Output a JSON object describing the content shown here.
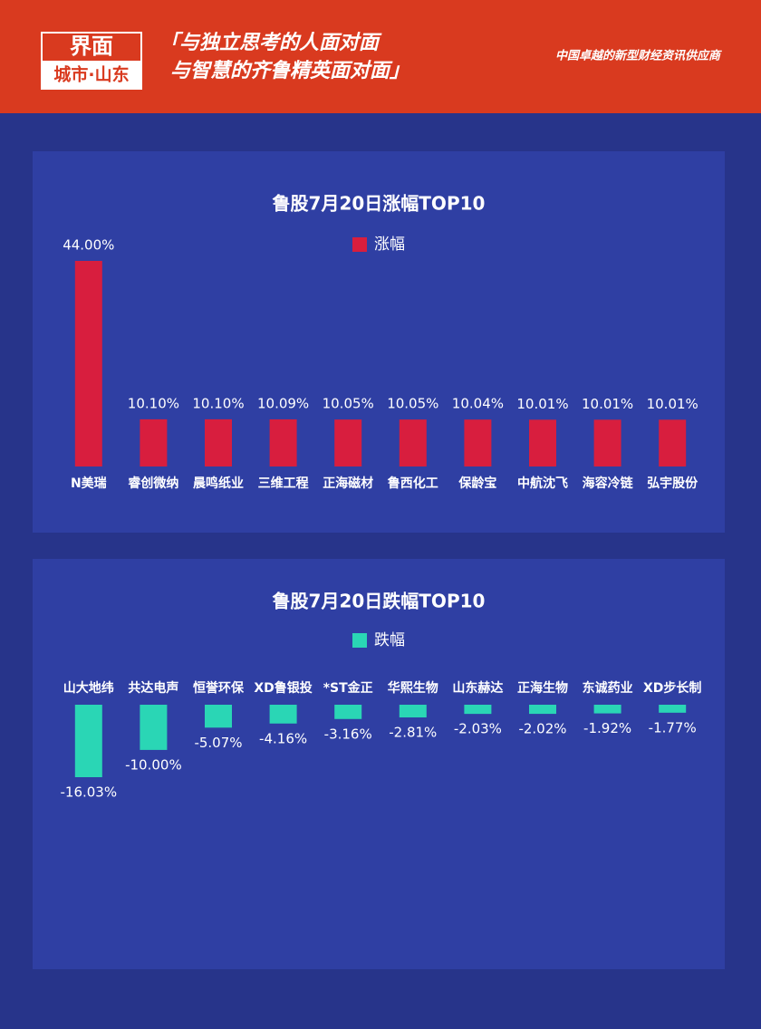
{
  "header": {
    "logo": "界面",
    "logo_sub": "城市·山东",
    "slogan_line1": "「与独立思考的人面对面",
    "slogan_line2": "与智慧的齐鲁精英面对面」",
    "tagline": "中国卓越的新型财经资讯供应商"
  },
  "chart_data": [
    {
      "type": "bar",
      "title": "鲁股7月20日涨幅TOP10",
      "categories": [
        "N美瑞",
        "睿创微纳",
        "晨鸣纸业",
        "三维工程",
        "正海磁材",
        "鲁西化工",
        "保龄宝",
        "中航沈飞",
        "海容冷链",
        "弘宇股份"
      ],
      "series": [
        {
          "name": "涨幅",
          "color": "#d81e3e",
          "values": [
            44,
            10.1,
            10.1,
            10.09,
            10.05,
            10.05,
            10.04,
            10.01,
            10.01,
            10.01
          ],
          "value_labels": [
            "44.00%",
            "10.10%",
            "10.10%",
            "10.09%",
            "10.05%",
            "10.05%",
            "10.04%",
            "10.01%",
            "10.01%",
            "10.01%"
          ]
        }
      ]
    },
    {
      "type": "bar",
      "title": "鲁股7月20日跌幅TOP10",
      "categories": [
        "山大地纬",
        "共达电声",
        "恒誉环保",
        "XD鲁银投",
        "*ST金正",
        "华熙生物",
        "山东赫达",
        "正海生物",
        "东诚药业",
        "XD步长制"
      ],
      "series": [
        {
          "name": "跌幅",
          "color": "#2ad6b5",
          "values": [
            -16.03,
            -10,
            -5.07,
            -4.16,
            -3.16,
            -2.81,
            -2.03,
            -2.02,
            -1.92,
            -1.77
          ],
          "value_labels": [
            "-16.03%",
            "-10.00%",
            "-5.07%",
            "-4.16%",
            "-3.16%",
            "-2.81%",
            "-2.03%",
            "-2.02%",
            "-1.92%",
            "-1.77%"
          ]
        }
      ]
    }
  ]
}
